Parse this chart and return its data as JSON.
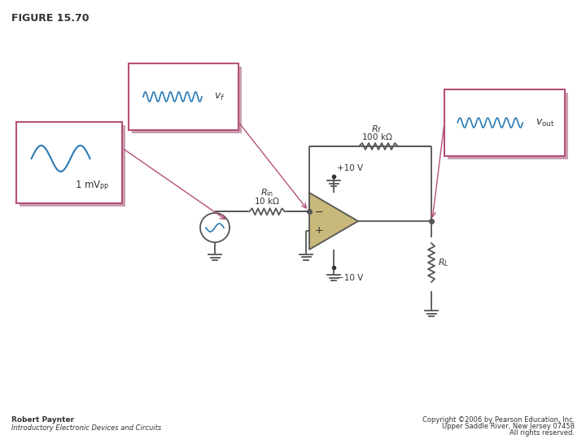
{
  "title": "FIGURE 15.70",
  "bg_color": "#ffffff",
  "border_color": "#b5507a",
  "shadow_color": "#c8a0b0",
  "wire_color": "#555555",
  "opamp_color": "#c8b87a",
  "resistor_color": "#555555",
  "wave_color": "#2a7ab5",
  "arrow_color": "#b5507a",
  "text_color": "#333333",
  "footer_left_line1": "Robert Paynter",
  "footer_left_line2": "Introductory Electronic Devices and Circuits",
  "footer_right_line1": "Copyright ©2006 by Pearson Education, Inc.",
  "footer_right_line2": "Upper Saddle River, New Jersey 07458",
  "footer_right_line3": "All rights reserved."
}
